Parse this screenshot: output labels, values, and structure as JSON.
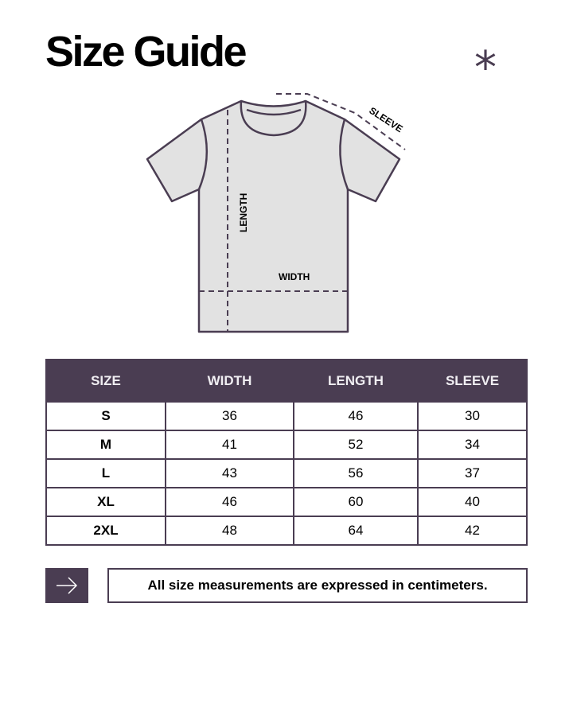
{
  "title": "Size Guide",
  "decoration": {
    "icon": "asterisk-icon",
    "glyph": "*"
  },
  "illustration": {
    "labels": {
      "length": "LENGTH",
      "width": "WIDTH",
      "sleeve": "SLEEVE"
    },
    "colors": {
      "fill": "#e2e2e2",
      "stroke": "#4a3d52"
    }
  },
  "table": {
    "headers": [
      "SIZE",
      "WIDTH",
      "LENGTH",
      "SLEEVE"
    ],
    "rows": [
      [
        "S",
        "36",
        "46",
        "30"
      ],
      [
        "M",
        "41",
        "52",
        "34"
      ],
      [
        "L",
        "43",
        "56",
        "37"
      ],
      [
        "XL",
        "46",
        "60",
        "40"
      ],
      [
        "2XL",
        "48",
        "64",
        "42"
      ]
    ]
  },
  "note": {
    "icon": "arrow-right-icon",
    "text": "All size measurements are expressed in centimeters."
  },
  "colors": {
    "accent": "#4a3d52"
  }
}
